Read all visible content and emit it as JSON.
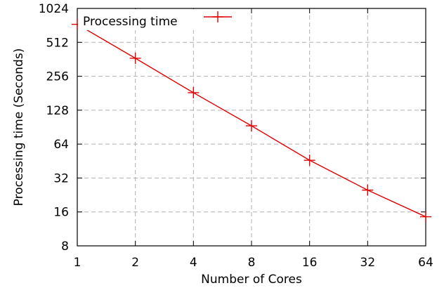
{
  "chart_data": {
    "type": "line",
    "title": "",
    "xlabel": "Number of Cores",
    "ylabel": "Processing time (Seconds)",
    "x_scale": "log2",
    "y_scale": "log2",
    "xlim": [
      1,
      64
    ],
    "ylim": [
      8,
      1024
    ],
    "x_ticks": [
      1,
      2,
      4,
      8,
      16,
      32,
      64
    ],
    "y_ticks": [
      8,
      16,
      32,
      64,
      128,
      256,
      512,
      1024
    ],
    "x_tick_labels": [
      "1",
      "2",
      "4",
      "8",
      "16",
      "32",
      "64"
    ],
    "y_tick_labels": [
      "8",
      "16",
      "32",
      "64",
      "128",
      "256",
      "512",
      "1024"
    ],
    "grid": true,
    "legend_position": "top-left",
    "series": [
      {
        "name": "Processing time",
        "color": "#e00000",
        "marker": "plus",
        "x": [
          1,
          2,
          4,
          8,
          16,
          32,
          64
        ],
        "y": [
          740,
          370,
          183,
          93,
          46,
          25,
          14.5
        ]
      }
    ]
  }
}
